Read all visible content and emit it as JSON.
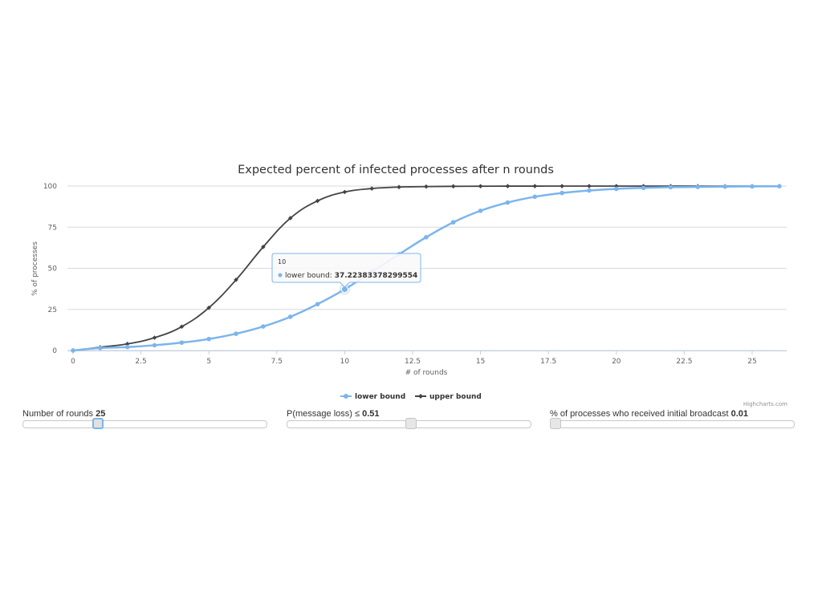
{
  "chart_data": {
    "type": "line",
    "title": "Expected percent of infected processes after n rounds",
    "xlabel": "# of rounds",
    "ylabel": "% of processes",
    "xlim": [
      0,
      26
    ],
    "ylim": [
      0,
      100
    ],
    "x_ticks": [
      0,
      2.5,
      5,
      7.5,
      10,
      12.5,
      15,
      17.5,
      20,
      22.5,
      25
    ],
    "y_ticks": [
      0,
      25,
      50,
      75,
      100
    ],
    "x_tick_labels": [
      "0",
      "2.5",
      "5",
      "7.5",
      "10",
      "12.5",
      "15",
      "17.5",
      "20",
      "22.5",
      "25"
    ],
    "y_tick_labels": [
      "0",
      "25",
      "50",
      "75",
      "100"
    ],
    "grid": true,
    "legend_position": "bottom-center",
    "x": [
      0,
      1,
      2,
      3,
      4,
      5,
      6,
      7,
      8,
      9,
      10,
      11,
      12,
      13,
      14,
      15,
      16,
      17,
      18,
      19,
      20,
      21,
      22,
      23,
      24,
      25,
      26
    ],
    "series": [
      {
        "name": "lower bound",
        "color": "#7cb5ec",
        "marker": "circle",
        "values": [
          0.01,
          1.5,
          2.1,
          3.2,
          4.8,
          7.0,
          10.2,
          14.6,
          20.5,
          28.2,
          37.22383378299554,
          47.9,
          58.5,
          68.9,
          78.0,
          85.0,
          90.0,
          93.5,
          95.8,
          97.3,
          98.3,
          98.9,
          99.3,
          99.5,
          99.7,
          99.8,
          99.9
        ]
      },
      {
        "name": "upper bound",
        "color": "#434348",
        "marker": "diamond",
        "values": [
          0.01,
          2.0,
          4.0,
          7.8,
          14.5,
          26.0,
          43.0,
          63.0,
          80.5,
          91.0,
          96.4,
          98.5,
          99.4,
          99.7,
          99.85,
          99.92,
          99.96,
          99.98,
          99.99,
          100,
          100,
          100,
          100,
          100,
          100,
          100,
          100
        ]
      }
    ],
    "tooltip": {
      "header": "10",
      "series_label": "lower bound: ",
      "value_text": "37.22383378299554",
      "x": 10,
      "y": 37.22383378299554
    },
    "credits": "Highcharts.com"
  },
  "controls": {
    "rounds": {
      "label": "Number of rounds ",
      "value": "25",
      "fraction": 0.3
    },
    "loss": {
      "label": "P(message loss) ≤ ",
      "value": "0.51",
      "fraction": 0.51
    },
    "initial": {
      "label": "% of processes who received initial broadcast ",
      "value": "0.01",
      "fraction": 0.0
    }
  }
}
